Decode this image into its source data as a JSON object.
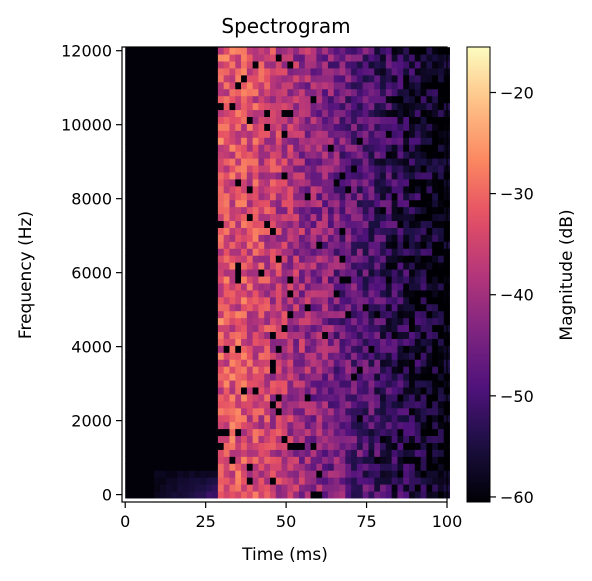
{
  "chart_data": {
    "type": "heatmap",
    "title": "Spectrogram",
    "xlabel": "Time (ms)",
    "ylabel": "Frequency (Hz)",
    "colorbar_label": "Magnitude (dB)",
    "colormap": "magma",
    "xlim": [
      -1,
      100
    ],
    "ylim": [
      -200,
      12100
    ],
    "x_ticks": [
      0,
      25,
      50,
      75,
      100
    ],
    "y_ticks": [
      0,
      2000,
      4000,
      6000,
      8000,
      10000,
      12000
    ],
    "color_range": [
      -60.5,
      -15.5
    ],
    "colorbar_ticks": [
      -60,
      -50,
      -40,
      -30,
      -20
    ],
    "time_bins": 56,
    "freq_bins": 65,
    "time_step_ms": 1.8,
    "freq_step_hz": 187.5,
    "onset_ms": 28,
    "onset_peak_db": -27,
    "peak_end_ms": 40,
    "decay_end_db": -55,
    "silence_db": -60,
    "grid": false
  }
}
